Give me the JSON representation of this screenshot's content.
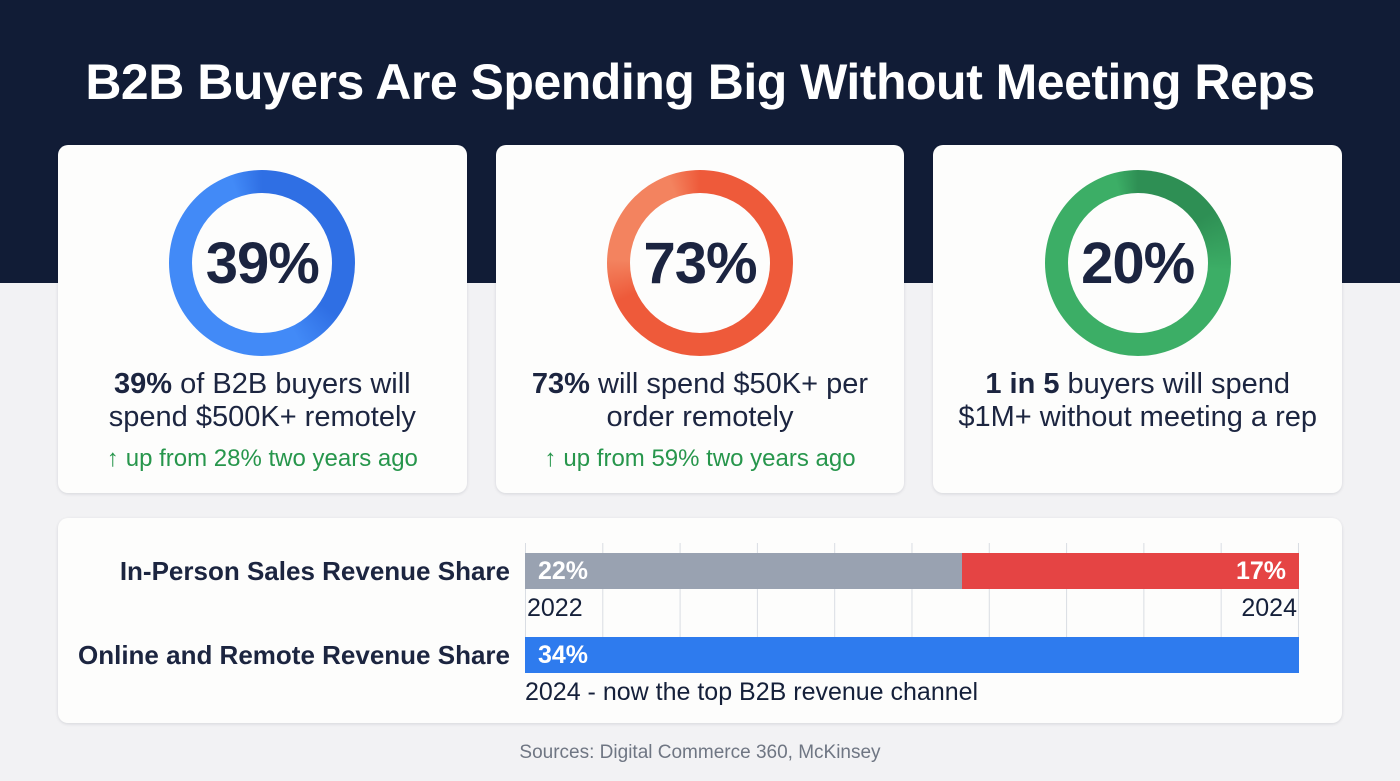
{
  "title": "B2B Buyers Are Spending Big Without Meeting Reps",
  "stat_cards": [
    {
      "percent": "39%",
      "desc_bold": "39%",
      "desc_rest": " of B2B buyers will spend $500K+ remotely",
      "trend_arrow": "↑",
      "trend_text": "up from 28% two years ago",
      "ring_color": "#2f6fe4",
      "ring_color_light": "#428af7"
    },
    {
      "percent": "73%",
      "desc_bold": "73%",
      "desc_rest": " will spend $50K+ per order remotely",
      "trend_arrow": "↑",
      "trend_text": "up from 59% two years ago",
      "ring_color": "#ee5a3a",
      "ring_color_light": "#f3835f"
    },
    {
      "percent": "20%",
      "desc_bold": "1 in 5",
      "desc_rest": " buyers will spend $1M+ without meeting a rep",
      "trend_arrow": "",
      "trend_text": "",
      "ring_color": "#2e8f54",
      "ring_color_light": "#3cae66"
    }
  ],
  "revenue_chart": {
    "rows": [
      {
        "label": "In-Person Sales Revenue Share",
        "bar1_value": "22%",
        "bar1_year": "2022",
        "bar2_value": "17%",
        "bar2_year": "2024"
      },
      {
        "label": "Online and Remote Revenue Share",
        "bar_value": "34%",
        "caption": "2024 - now the top B2B revenue channel"
      }
    ],
    "colors": {
      "gray": "#99a2b1",
      "red": "#e54444",
      "blue": "#2e7bee"
    }
  },
  "footer": "Sources: Digital Commerce 360, McKinsey",
  "colors": {
    "header_bg": "#111c36",
    "page_bg": "#f2f2f4",
    "card_bg": "#fdfdfc",
    "text_dark": "#1c2540",
    "green": "#27964c"
  },
  "chart_data": [
    {
      "type": "pie",
      "subtype": "donut",
      "value": 39,
      "unit": "%",
      "label": "39% of B2B buyers will spend $500K+ remotely",
      "change_note": "up from 28% two years ago",
      "color": "#2f6fe4"
    },
    {
      "type": "pie",
      "subtype": "donut",
      "value": 73,
      "unit": "%",
      "label": "73% will spend $50K+ per order remotely",
      "change_note": "up from 59% two years ago",
      "color": "#ee5a3a"
    },
    {
      "type": "pie",
      "subtype": "donut",
      "value": 20,
      "unit": "%",
      "label": "1 in 5 buyers will spend $1M+ without meeting a rep",
      "change_note": null,
      "color": "#2e8f54"
    },
    {
      "type": "bar",
      "orientation": "horizontal",
      "grid": true,
      "series": [
        {
          "name": "In-Person Sales Revenue Share",
          "points": [
            {
              "year": "2022",
              "value": 22,
              "color": "#99a2b1"
            },
            {
              "year": "2024",
              "value": 17,
              "color": "#e54444"
            }
          ]
        },
        {
          "name": "Online and Remote Revenue Share",
          "points": [
            {
              "year": "2024",
              "value": 34,
              "color": "#2e7bee"
            }
          ]
        }
      ],
      "annotation": "2024 - now the top B2B revenue channel"
    }
  ]
}
